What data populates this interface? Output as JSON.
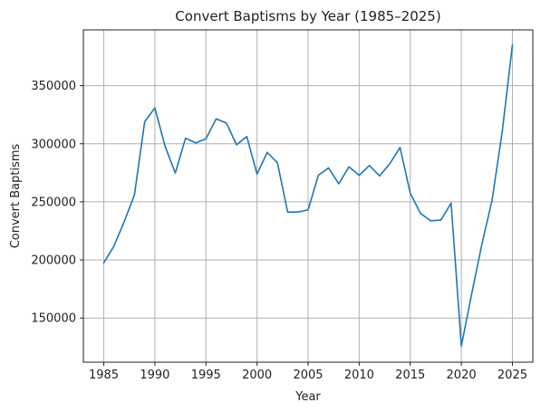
{
  "chart_data": {
    "type": "line",
    "title": "Convert Baptisms by Year (1985–2025)",
    "xlabel": "Year",
    "ylabel": "Convert Baptisms",
    "xlim": [
      1983.0,
      2027.0
    ],
    "ylim": [
      112000,
      398000
    ],
    "xticks": [
      1985,
      1990,
      1995,
      2000,
      2005,
      2010,
      2015,
      2020,
      2025
    ],
    "yticks": [
      150000,
      200000,
      250000,
      300000,
      350000
    ],
    "grid": true,
    "legend": "none",
    "series": [
      {
        "color": "#1f77b4",
        "x": [
          1985,
          1986,
          1987,
          1988,
          1989,
          1990,
          1991,
          1992,
          1993,
          1994,
          1995,
          1996,
          1997,
          1998,
          1999,
          2000,
          2001,
          2002,
          2003,
          2004,
          2005,
          2006,
          2007,
          2008,
          2009,
          2010,
          2011,
          2012,
          2013,
          2014,
          2015,
          2016,
          2017,
          2018,
          2019,
          2020,
          2021,
          2022,
          2023,
          2024,
          2025
        ],
        "values": [
          197600,
          212000,
          233000,
          256000,
          318900,
          330900,
          297800,
          274800,
          304800,
          300700,
          304300,
          321400,
          317800,
          299100,
          306200,
          273900,
          292600,
          283500,
          241200,
          241200,
          243100,
          272800,
          279200,
          265600,
          280100,
          272800,
          281300,
          272300,
          282900,
          296800,
          257400,
          240100,
          233700,
          234300,
          248900,
          125900,
          170200,
          213000,
          251000,
          310000,
          385000
        ]
      }
    ]
  }
}
